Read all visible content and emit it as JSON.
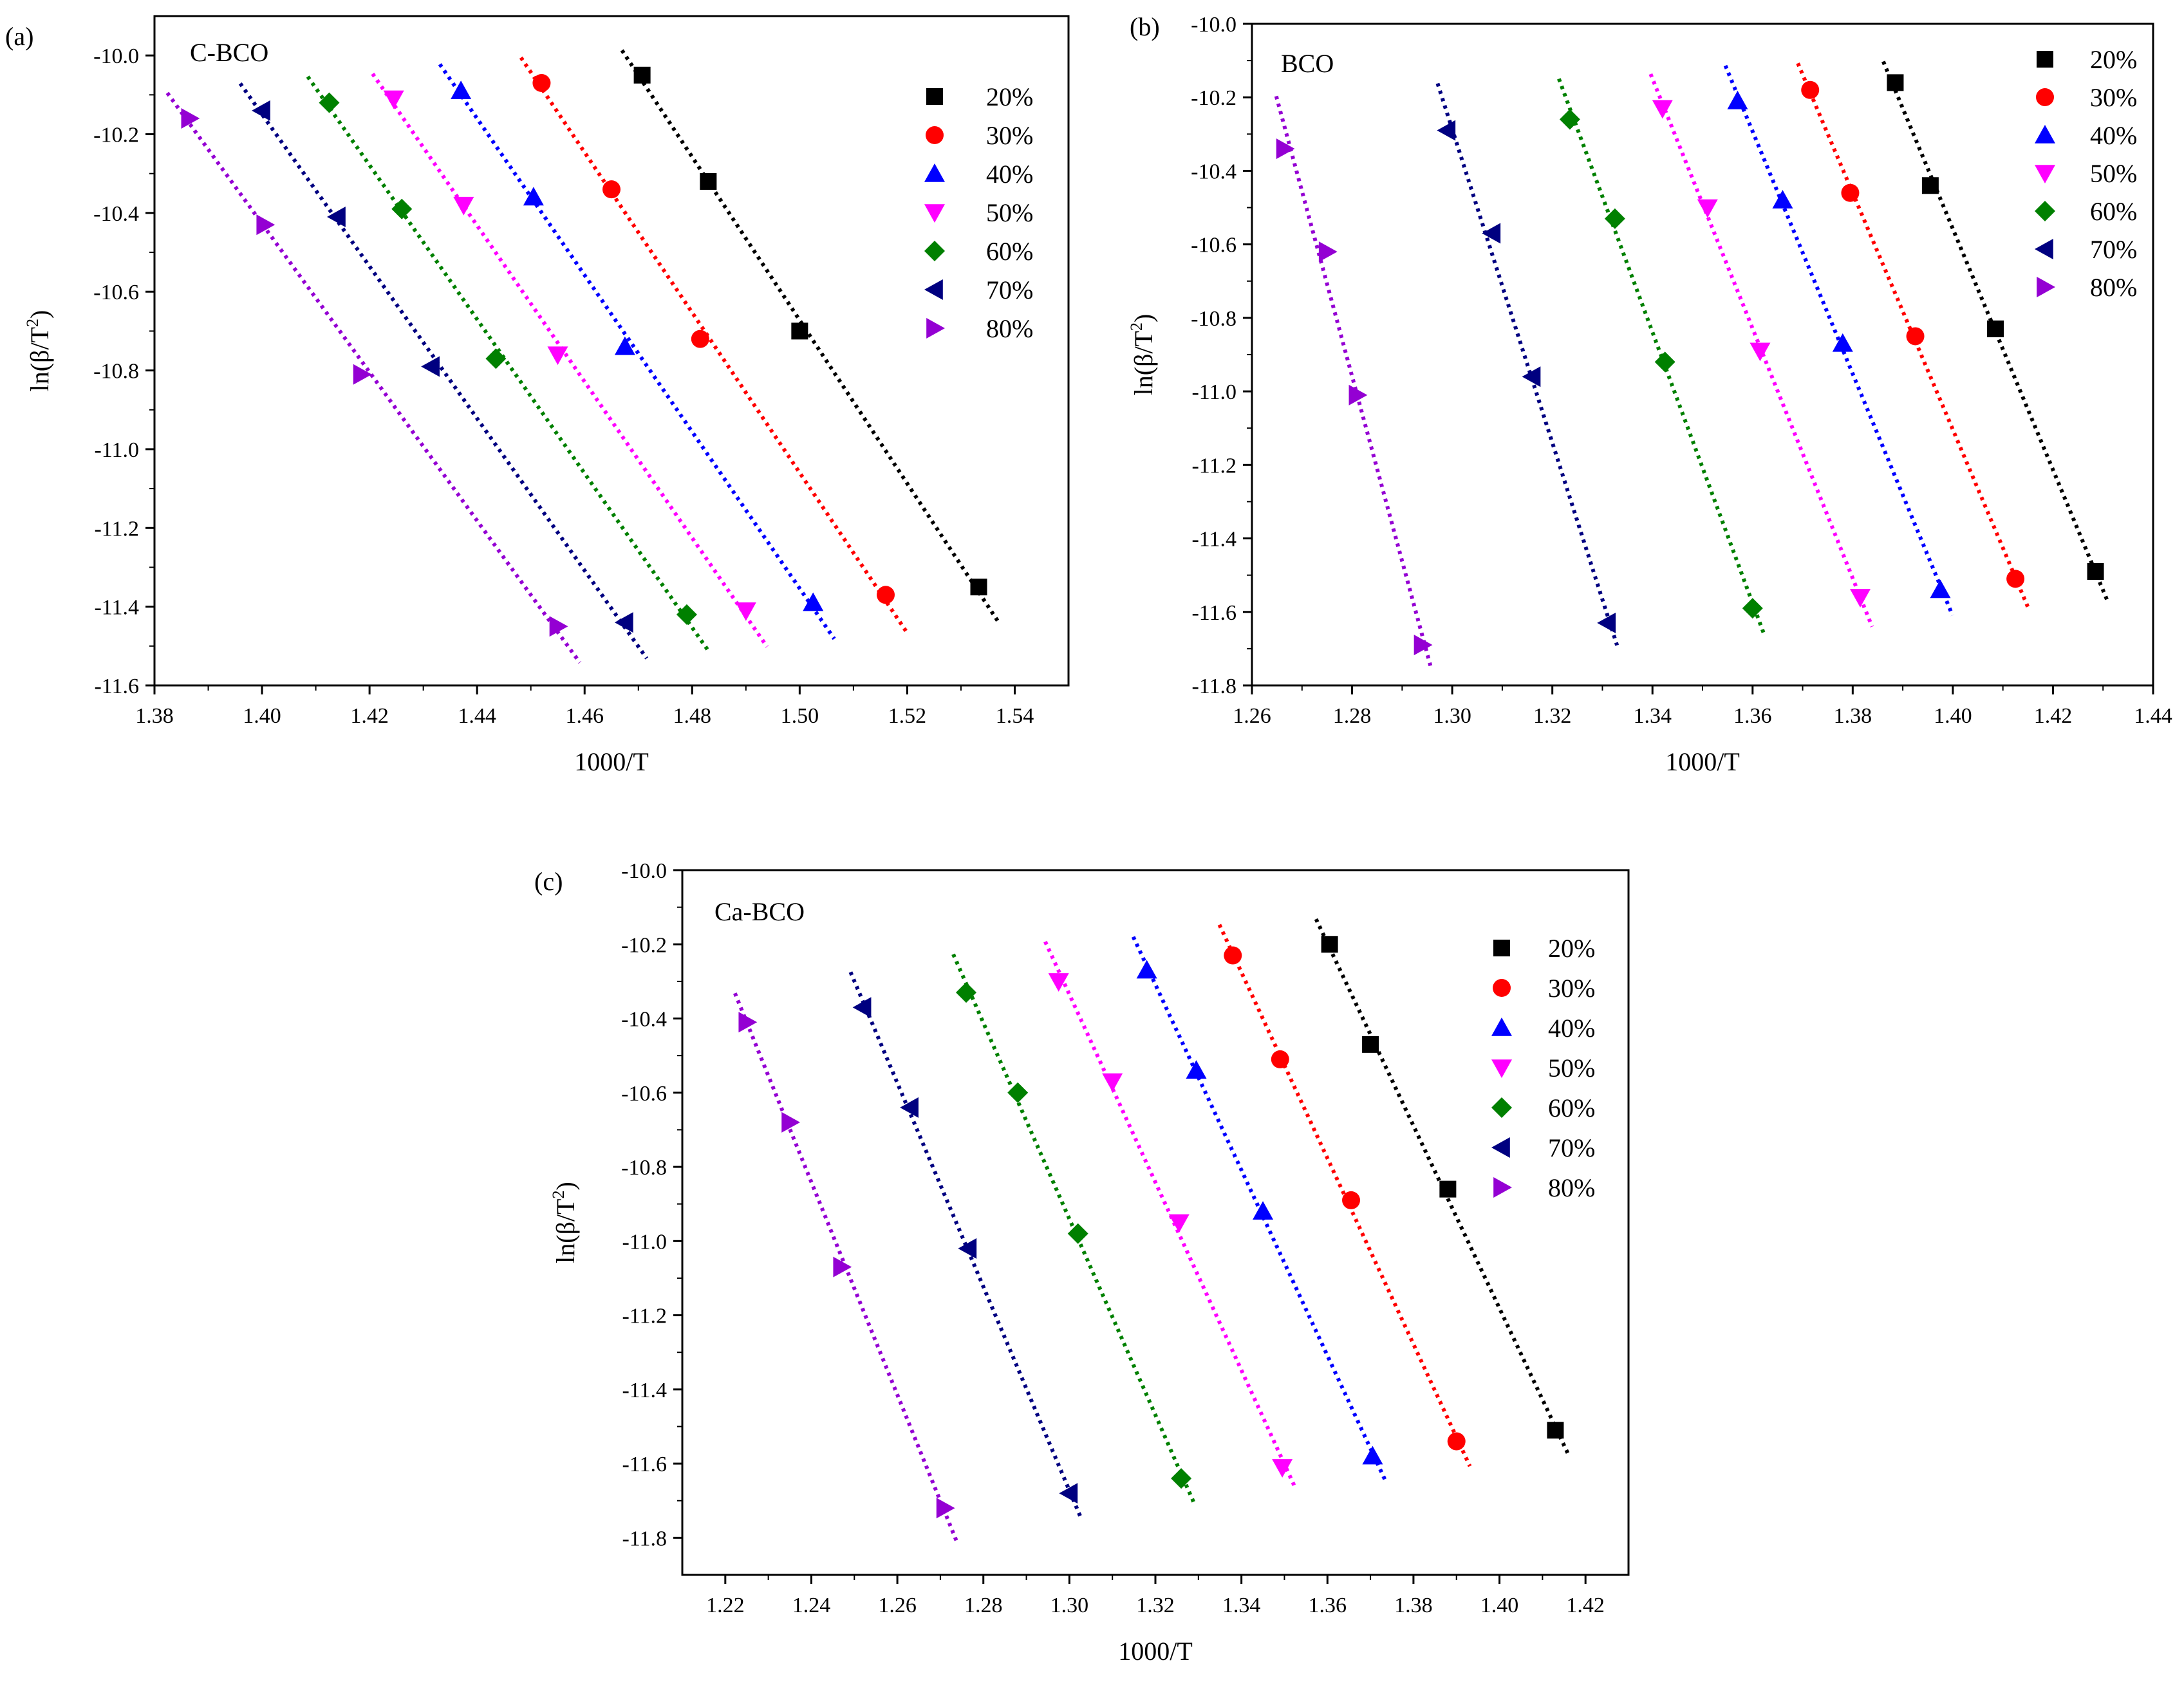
{
  "chart_data": [
    {
      "type": "scatter",
      "panel_label": "(a)",
      "title": "C-BCO",
      "xlabel": "1000/T",
      "ylabel": "ln(β/T²)",
      "ylabel_parts": {
        "prefix": "ln(β/T",
        "sup": "2",
        "suffix": ")"
      },
      "xlim": [
        1.38,
        1.55
      ],
      "ylim": [
        -11.6,
        -9.9
      ],
      "xticks": [
        1.38,
        1.4,
        1.42,
        1.44,
        1.46,
        1.48,
        1.5,
        1.52,
        1.54
      ],
      "xtick_labels": [
        "1.38",
        "1.40",
        "1.42",
        "1.44",
        "1.46",
        "1.48",
        "1.50",
        "1.52",
        "1.54"
      ],
      "yticks": [
        -11.6,
        -11.4,
        -11.2,
        -11.0,
        -10.8,
        -10.6,
        -10.4,
        -10.2,
        -10.0
      ],
      "ytick_labels": [
        "-11.6",
        "-11.4",
        "-11.2",
        "-11.0",
        "-10.8",
        "-10.6",
        "-10.4",
        "-10.2",
        "-10.0"
      ],
      "legend": "top-right",
      "series": [
        {
          "name": "20%",
          "marker": "square",
          "color": "#000000",
          "x": [
            1.4707,
            1.483,
            1.5,
            1.5333
          ],
          "y": [
            -10.05,
            -10.32,
            -10.7,
            -11.35
          ]
        },
        {
          "name": "30%",
          "marker": "circle",
          "color": "#ff0000",
          "x": [
            1.452,
            1.465,
            1.4815,
            1.516
          ],
          "y": [
            -10.07,
            -10.34,
            -10.72,
            -11.37
          ]
        },
        {
          "name": "40%",
          "marker": "triangle-up",
          "color": "#0000ff",
          "x": [
            1.437,
            1.4505,
            1.4675,
            1.5025
          ],
          "y": [
            -10.09,
            -10.36,
            -10.74,
            -11.39
          ]
        },
        {
          "name": "50%",
          "marker": "triangle-down",
          "color": "#ff00ff",
          "x": [
            1.4245,
            1.4375,
            1.455,
            1.49
          ],
          "y": [
            -10.11,
            -10.38,
            -10.76,
            -11.41
          ]
        },
        {
          "name": "60%",
          "marker": "diamond",
          "color": "#008000",
          "x": [
            1.4125,
            1.426,
            1.4435,
            1.479
          ],
          "y": [
            -10.12,
            -10.39,
            -10.77,
            -11.42
          ]
        },
        {
          "name": "70%",
          "marker": "triangle-left",
          "color": "#000080",
          "x": [
            1.4,
            1.414,
            1.4315,
            1.4675
          ],
          "y": [
            -10.14,
            -10.41,
            -10.79,
            -11.44
          ]
        },
        {
          "name": "80%",
          "marker": "triangle-right",
          "color": "#9400d3",
          "x": [
            1.3865,
            1.4005,
            1.4185,
            1.455
          ],
          "y": [
            -10.16,
            -10.43,
            -10.81,
            -11.45
          ]
        }
      ]
    },
    {
      "type": "scatter",
      "panel_label": "(b)",
      "title": "BCO",
      "xlabel": "1000/T",
      "ylabel": "ln(β/T²)",
      "ylabel_parts": {
        "prefix": "ln(β/T",
        "sup": "2",
        "suffix": ")"
      },
      "xlim": [
        1.26,
        1.44
      ],
      "ylim": [
        -11.8,
        -10.0
      ],
      "xticks": [
        1.26,
        1.28,
        1.3,
        1.32,
        1.34,
        1.36,
        1.38,
        1.4,
        1.42,
        1.44
      ],
      "xtick_labels": [
        "1.26",
        "1.28",
        "1.30",
        "1.32",
        "1.34",
        "1.36",
        "1.38",
        "1.40",
        "1.42",
        "1.44"
      ],
      "yticks": [
        -11.8,
        -11.6,
        -11.4,
        -11.2,
        -11.0,
        -10.8,
        -10.6,
        -10.4,
        -10.2,
        -10.0
      ],
      "ytick_labels": [
        "-11.8",
        "-11.6",
        "-11.4",
        "-11.2",
        "-11.0",
        "-10.8",
        "-10.6",
        "-10.4",
        "-10.2",
        "-10.0"
      ],
      "legend": "top-right",
      "series": [
        {
          "name": "20%",
          "marker": "square",
          "color": "#000000",
          "x": [
            1.3885,
            1.3955,
            1.4085,
            1.4285
          ],
          "y": [
            -10.16,
            -10.44,
            -10.83,
            -11.49
          ]
        },
        {
          "name": "30%",
          "marker": "circle",
          "color": "#ff0000",
          "x": [
            1.3715,
            1.3795,
            1.3925,
            1.4125
          ],
          "y": [
            -10.18,
            -10.46,
            -10.85,
            -11.51
          ]
        },
        {
          "name": "40%",
          "marker": "triangle-up",
          "color": "#0000ff",
          "x": [
            1.357,
            1.366,
            1.378,
            1.3975
          ],
          "y": [
            -10.21,
            -10.48,
            -10.87,
            -11.54
          ]
        },
        {
          "name": "50%",
          "marker": "triangle-down",
          "color": "#ff00ff",
          "x": [
            1.342,
            1.351,
            1.3615,
            1.3815
          ],
          "y": [
            -10.23,
            -10.5,
            -10.89,
            -11.56
          ]
        },
        {
          "name": "60%",
          "marker": "diamond",
          "color": "#008000",
          "x": [
            1.3235,
            1.3325,
            1.3425,
            1.36
          ],
          "y": [
            -10.26,
            -10.53,
            -10.92,
            -11.59
          ]
        },
        {
          "name": "70%",
          "marker": "triangle-left",
          "color": "#000080",
          "x": [
            1.299,
            1.308,
            1.316,
            1.331
          ],
          "y": [
            -10.29,
            -10.57,
            -10.96,
            -11.63
          ]
        },
        {
          "name": "80%",
          "marker": "triangle-right",
          "color": "#9400d3",
          "x": [
            1.2665,
            1.275,
            1.281,
            1.294
          ],
          "y": [
            -10.34,
            -10.62,
            -11.01,
            -11.69
          ]
        }
      ]
    },
    {
      "type": "scatter",
      "panel_label": "(c)",
      "title": "Ca-BCO",
      "xlabel": "1000/T",
      "ylabel": "ln(β/T²)",
      "ylabel_parts": {
        "prefix": "ln(β/T",
        "sup": "2",
        "suffix": ")"
      },
      "xlim": [
        1.21,
        1.43
      ],
      "ylim": [
        -11.9,
        -10.0
      ],
      "xticks": [
        1.22,
        1.24,
        1.26,
        1.28,
        1.3,
        1.32,
        1.34,
        1.36,
        1.38,
        1.4,
        1.42
      ],
      "xtick_labels": [
        "1.22",
        "1.24",
        "1.26",
        "1.28",
        "1.30",
        "1.32",
        "1.34",
        "1.36",
        "1.38",
        "1.40",
        "1.42"
      ],
      "yticks": [
        -11.8,
        -11.6,
        -11.4,
        -11.2,
        -11.0,
        -10.8,
        -10.6,
        -10.4,
        -10.2,
        -10.0
      ],
      "ytick_labels": [
        "-11.8",
        "-11.6",
        "-11.4",
        "-11.2",
        "-11.0",
        "-10.8",
        "-10.6",
        "-10.4",
        "-10.2",
        "-10.0"
      ],
      "legend": "top-right",
      "series": [
        {
          "name": "20%",
          "marker": "square",
          "color": "#000000",
          "x": [
            1.3605,
            1.37,
            1.388,
            1.413
          ],
          "y": [
            -10.2,
            -10.47,
            -10.86,
            -11.51
          ]
        },
        {
          "name": "30%",
          "marker": "circle",
          "color": "#ff0000",
          "x": [
            1.338,
            1.349,
            1.3655,
            1.39
          ],
          "y": [
            -10.23,
            -10.51,
            -10.89,
            -11.54
          ]
        },
        {
          "name": "40%",
          "marker": "triangle-up",
          "color": "#0000ff",
          "x": [
            1.318,
            1.3295,
            1.345,
            1.3705
          ],
          "y": [
            -10.27,
            -10.54,
            -10.92,
            -11.58
          ]
        },
        {
          "name": "50%",
          "marker": "triangle-down",
          "color": "#ff00ff",
          "x": [
            1.2975,
            1.31,
            1.3255,
            1.3495
          ],
          "y": [
            -10.3,
            -10.57,
            -10.95,
            -11.61
          ]
        },
        {
          "name": "60%",
          "marker": "diamond",
          "color": "#008000",
          "x": [
            1.276,
            1.288,
            1.302,
            1.326
          ],
          "y": [
            -10.33,
            -10.6,
            -10.98,
            -11.64
          ]
        },
        {
          "name": "70%",
          "marker": "triangle-left",
          "color": "#000080",
          "x": [
            1.252,
            1.263,
            1.2765,
            1.3
          ],
          "y": [
            -10.37,
            -10.64,
            -11.02,
            -11.68
          ]
        },
        {
          "name": "80%",
          "marker": "triangle-right",
          "color": "#9400d3",
          "x": [
            1.225,
            1.235,
            1.247,
            1.271
          ],
          "y": [
            -10.41,
            -10.68,
            -11.07,
            -11.72
          ]
        }
      ]
    }
  ]
}
